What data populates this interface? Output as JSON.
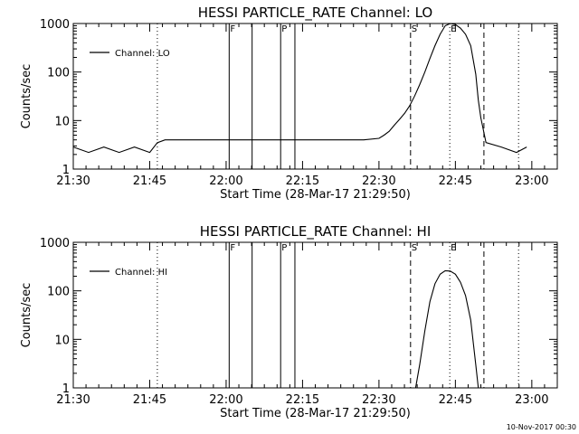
{
  "footer": {
    "timestamp": "10-Nov-2017 00:30"
  },
  "chart_data": [
    {
      "type": "line",
      "title": "HESSI PARTICLE_RATE Channel: LO",
      "xlabel": "Start Time (28-Mar-17 21:29:50)",
      "ylabel": "Counts/sec",
      "y_scale": "log",
      "ylim": [
        1,
        1000
      ],
      "xlim": [
        0,
        95
      ],
      "x_tick_values": [
        0,
        15,
        30,
        45,
        60,
        75,
        90
      ],
      "x_tick_labels": [
        "21:30",
        "21:45",
        "22:00",
        "22:15",
        "22:30",
        "22:45",
        "23:00"
      ],
      "y_tick_values": [
        1,
        10,
        100,
        1000
      ],
      "y_tick_labels": [
        "1",
        "10",
        "100",
        "1000"
      ],
      "legend": {
        "label": "Channel: LO",
        "placement": "top-left"
      },
      "vlines": [
        {
          "x": 16.5,
          "style": "dotted",
          "label": ""
        },
        {
          "x": 30.6,
          "style": "solid",
          "label": "F"
        },
        {
          "x": 35.1,
          "style": "solid",
          "label": ""
        },
        {
          "x": 40.7,
          "style": "solid",
          "label": "P"
        },
        {
          "x": 43.5,
          "style": "solid",
          "label": ""
        },
        {
          "x": 66.2,
          "style": "dashed",
          "label": "S"
        },
        {
          "x": 73.9,
          "style": "dotted",
          "label": "E"
        },
        {
          "x": 80.6,
          "style": "dashed",
          "label": ""
        },
        {
          "x": 87.4,
          "style": "dotted",
          "label": ""
        }
      ],
      "series": [
        {
          "name": "Channel: LO",
          "x": [
            0,
            3,
            6,
            9,
            12,
            15,
            16.5,
            18,
            21,
            24,
            27,
            30,
            33,
            36,
            39,
            42,
            45,
            48,
            51,
            54,
            57,
            60,
            61,
            62,
            63,
            64,
            65,
            66,
            67,
            68,
            69,
            70,
            71,
            72,
            73,
            74,
            75,
            76,
            77,
            78,
            79,
            79.5,
            80,
            81,
            84,
            87,
            89
          ],
          "y": [
            2.5,
            2.5,
            2.5,
            2.5,
            2.5,
            2.5,
            3.5,
            4,
            4,
            4,
            4,
            4,
            4,
            4,
            4,
            4,
            4,
            4,
            4,
            4,
            4,
            4.3,
            5,
            6,
            8,
            10.5,
            14,
            20,
            32,
            55,
            100,
            190,
            350,
            600,
            900,
            1000,
            950,
            800,
            600,
            350,
            90,
            30,
            10,
            4,
            2.5,
            2.5,
            2.5
          ]
        }
      ]
    },
    {
      "type": "line",
      "title": "HESSI PARTICLE_RATE Channel: HI",
      "xlabel": "Start Time (28-Mar-17 21:29:50)",
      "ylabel": "Counts/sec",
      "y_scale": "log",
      "ylim": [
        1,
        1000
      ],
      "xlim": [
        0,
        95
      ],
      "x_tick_values": [
        0,
        15,
        30,
        45,
        60,
        75,
        90
      ],
      "x_tick_labels": [
        "21:30",
        "21:45",
        "22:00",
        "22:15",
        "22:30",
        "22:45",
        "23:00"
      ],
      "y_tick_values": [
        1,
        10,
        100,
        1000
      ],
      "y_tick_labels": [
        "1",
        "10",
        "100",
        "1000"
      ],
      "legend": {
        "label": "Channel: HI",
        "placement": "top-left"
      },
      "vlines": [
        {
          "x": 16.5,
          "style": "dotted",
          "label": ""
        },
        {
          "x": 30.6,
          "style": "solid",
          "label": "F"
        },
        {
          "x": 35.1,
          "style": "solid",
          "label": ""
        },
        {
          "x": 40.7,
          "style": "solid",
          "label": "P"
        },
        {
          "x": 43.5,
          "style": "solid",
          "label": ""
        },
        {
          "x": 66.2,
          "style": "dashed",
          "label": "S"
        },
        {
          "x": 73.9,
          "style": "dotted",
          "label": "E"
        },
        {
          "x": 80.6,
          "style": "dashed",
          "label": ""
        },
        {
          "x": 87.4,
          "style": "dotted",
          "label": ""
        }
      ],
      "series": [
        {
          "name": "Channel: HI",
          "x": [
            67.2,
            68,
            69,
            70,
            71,
            72,
            73,
            74,
            75,
            76,
            77,
            78,
            79,
            79.5
          ],
          "y": [
            1,
            3,
            15,
            60,
            140,
            220,
            260,
            255,
            220,
            150,
            80,
            25,
            3,
            1
          ]
        }
      ]
    }
  ]
}
